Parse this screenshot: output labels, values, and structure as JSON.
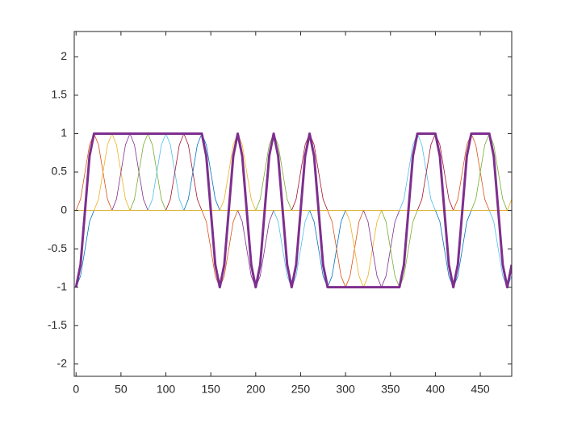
{
  "chart_data": {
    "type": "line",
    "xlim": [
      -2,
      485
    ],
    "ylim": [
      -2.16,
      2.33
    ],
    "xticks": [
      0,
      50,
      100,
      150,
      200,
      250,
      300,
      350,
      400,
      450
    ],
    "yticks": [
      -2,
      -1.5,
      -1,
      -0.5,
      0,
      0.5,
      1,
      1.5,
      2
    ],
    "grid": false,
    "series": [
      {
        "color": "#0072BD",
        "line_width": 0.8,
        "x": [
          0,
          5,
          10,
          15,
          20,
          485
        ],
        "values": [
          -1,
          -0.854,
          -0.5,
          -0.146,
          0,
          0
        ]
      },
      {
        "color": "#D95319",
        "line_width": 0.8,
        "x": [
          0,
          5,
          10,
          15,
          20,
          25,
          30,
          35,
          40,
          485
        ],
        "values": [
          0,
          0.146,
          0.5,
          0.854,
          1,
          0.854,
          0.5,
          0.146,
          0,
          0
        ]
      },
      {
        "color": "#EDB120",
        "line_width": 0.8,
        "x": [
          0,
          20,
          25,
          30,
          35,
          40,
          45,
          50,
          55,
          60,
          485
        ],
        "values": [
          0,
          0,
          0.146,
          0.5,
          0.854,
          1,
          0.854,
          0.5,
          0.146,
          0,
          0
        ]
      },
      {
        "color": "#7E2F8E",
        "line_width": 0.8,
        "x": [
          0,
          40,
          45,
          50,
          55,
          60,
          65,
          70,
          75,
          80,
          485
        ],
        "values": [
          0,
          0,
          0.146,
          0.5,
          0.854,
          1,
          0.854,
          0.5,
          0.146,
          0,
          0
        ]
      },
      {
        "color": "#77AC30",
        "line_width": 0.8,
        "x": [
          0,
          60,
          65,
          70,
          75,
          80,
          85,
          90,
          95,
          100,
          485
        ],
        "values": [
          0,
          0,
          0.146,
          0.5,
          0.854,
          1,
          0.854,
          0.5,
          0.146,
          0,
          0
        ]
      },
      {
        "color": "#4DBEEE",
        "line_width": 0.8,
        "x": [
          0,
          80,
          85,
          90,
          95,
          100,
          105,
          110,
          115,
          120,
          485
        ],
        "values": [
          0,
          0,
          0.146,
          0.5,
          0.854,
          1,
          0.854,
          0.5,
          0.146,
          0,
          0
        ]
      },
      {
        "color": "#A2142F",
        "line_width": 0.8,
        "x": [
          0,
          100,
          105,
          110,
          115,
          120,
          125,
          130,
          135,
          140,
          485
        ],
        "values": [
          0,
          0,
          0.146,
          0.5,
          0.854,
          1,
          0.854,
          0.5,
          0.146,
          0,
          0
        ]
      },
      {
        "color": "#0072BD",
        "line_width": 0.8,
        "x": [
          0,
          120,
          125,
          130,
          135,
          140,
          145,
          150,
          155,
          160,
          485
        ],
        "values": [
          0,
          0,
          0.146,
          0.5,
          0.854,
          1,
          0.854,
          0.5,
          0.146,
          0,
          0
        ]
      },
      {
        "color": "#D95319",
        "line_width": 0.8,
        "x": [
          0,
          140,
          145,
          150,
          155,
          160,
          165,
          170,
          175,
          180,
          485
        ],
        "values": [
          0,
          0,
          -0.146,
          -0.5,
          -0.854,
          -1,
          -0.854,
          -0.5,
          -0.146,
          0,
          0
        ]
      },
      {
        "color": "#EDB120",
        "line_width": 0.8,
        "x": [
          0,
          160,
          165,
          170,
          175,
          180,
          185,
          190,
          195,
          200,
          485
        ],
        "values": [
          0,
          0,
          0.146,
          0.5,
          0.854,
          1,
          0.854,
          0.5,
          0.146,
          0,
          0
        ]
      },
      {
        "color": "#7E2F8E",
        "line_width": 0.8,
        "x": [
          0,
          180,
          185,
          190,
          195,
          200,
          205,
          210,
          215,
          220,
          485
        ],
        "values": [
          0,
          0,
          -0.146,
          -0.5,
          -0.854,
          -1,
          -0.854,
          -0.5,
          -0.146,
          0,
          0
        ]
      },
      {
        "color": "#77AC30",
        "line_width": 0.8,
        "x": [
          0,
          200,
          205,
          210,
          215,
          220,
          225,
          230,
          235,
          240,
          485
        ],
        "values": [
          0,
          0,
          0.146,
          0.5,
          0.854,
          1,
          0.854,
          0.5,
          0.146,
          0,
          0
        ]
      },
      {
        "color": "#4DBEEE",
        "line_width": 0.8,
        "x": [
          0,
          220,
          225,
          230,
          235,
          240,
          245,
          250,
          255,
          260,
          485
        ],
        "values": [
          0,
          0,
          -0.146,
          -0.5,
          -0.854,
          -1,
          -0.854,
          -0.5,
          -0.146,
          0,
          0
        ]
      },
      {
        "color": "#A2142F",
        "line_width": 0.8,
        "x": [
          0,
          240,
          245,
          250,
          255,
          260,
          265,
          270,
          275,
          280,
          485
        ],
        "values": [
          0,
          0,
          0.146,
          0.5,
          0.854,
          1,
          0.854,
          0.5,
          0.146,
          0,
          0
        ]
      },
      {
        "color": "#0072BD",
        "line_width": 0.8,
        "x": [
          0,
          260,
          265,
          270,
          275,
          280,
          285,
          290,
          295,
          300,
          485
        ],
        "values": [
          0,
          0,
          -0.146,
          -0.5,
          -0.854,
          -1,
          -0.854,
          -0.5,
          -0.146,
          0,
          0
        ]
      },
      {
        "color": "#D95319",
        "line_width": 0.8,
        "x": [
          0,
          280,
          285,
          290,
          295,
          300,
          305,
          310,
          315,
          320,
          485
        ],
        "values": [
          0,
          0,
          -0.146,
          -0.5,
          -0.854,
          -1,
          -0.854,
          -0.5,
          -0.146,
          0,
          0
        ]
      },
      {
        "color": "#EDB120",
        "line_width": 0.8,
        "x": [
          0,
          300,
          305,
          310,
          315,
          320,
          325,
          330,
          335,
          340,
          485
        ],
        "values": [
          0,
          0,
          -0.146,
          -0.5,
          -0.854,
          -1,
          -0.854,
          -0.5,
          -0.146,
          0,
          0
        ]
      },
      {
        "color": "#7E2F8E",
        "line_width": 0.8,
        "x": [
          0,
          320,
          325,
          330,
          335,
          340,
          345,
          350,
          355,
          360,
          485
        ],
        "values": [
          0,
          0,
          -0.146,
          -0.5,
          -0.854,
          -1,
          -0.854,
          -0.5,
          -0.146,
          0,
          0
        ]
      },
      {
        "color": "#77AC30",
        "line_width": 0.8,
        "x": [
          0,
          340,
          345,
          350,
          355,
          360,
          365,
          370,
          375,
          380,
          485
        ],
        "values": [
          0,
          0,
          -0.146,
          -0.5,
          -0.854,
          -1,
          -0.854,
          -0.5,
          -0.146,
          0,
          0
        ]
      },
      {
        "color": "#4DBEEE",
        "line_width": 0.8,
        "x": [
          0,
          360,
          365,
          370,
          375,
          380,
          385,
          390,
          395,
          400,
          485
        ],
        "values": [
          0,
          0,
          0.146,
          0.5,
          0.854,
          1,
          0.854,
          0.5,
          0.146,
          0,
          0
        ]
      },
      {
        "color": "#A2142F",
        "line_width": 0.8,
        "x": [
          0,
          380,
          385,
          390,
          395,
          400,
          405,
          410,
          415,
          420,
          485
        ],
        "values": [
          0,
          0,
          0.146,
          0.5,
          0.854,
          1,
          0.854,
          0.5,
          0.146,
          0,
          0
        ]
      },
      {
        "color": "#0072BD",
        "line_width": 0.8,
        "x": [
          0,
          400,
          405,
          410,
          415,
          420,
          425,
          430,
          435,
          440,
          485
        ],
        "values": [
          0,
          0,
          -0.146,
          -0.5,
          -0.854,
          -1,
          -0.854,
          -0.5,
          -0.146,
          0,
          0
        ]
      },
      {
        "color": "#D95319",
        "line_width": 0.8,
        "x": [
          0,
          420,
          425,
          430,
          435,
          440,
          445,
          450,
          455,
          460,
          485
        ],
        "values": [
          0,
          0,
          0.146,
          0.5,
          0.854,
          1,
          0.854,
          0.5,
          0.146,
          0,
          0
        ]
      },
      {
        "color": "#77AC30",
        "line_width": 0.8,
        "x": [
          0,
          440,
          445,
          450,
          455,
          460,
          465,
          470,
          475,
          480,
          485
        ],
        "values": [
          0,
          0,
          0.146,
          0.5,
          0.854,
          1,
          0.854,
          0.5,
          0.146,
          0,
          0
        ]
      },
      {
        "color": "#4DBEEE",
        "line_width": 0.8,
        "x": [
          0,
          460,
          465,
          470,
          475,
          480,
          485
        ],
        "values": [
          0,
          0,
          -0.146,
          -0.5,
          -0.854,
          -1,
          -0.854
        ]
      },
      {
        "color": "#EDB120",
        "line_width": 0.8,
        "x": [
          0,
          480,
          485
        ],
        "values": [
          0,
          0,
          0.146
        ]
      },
      {
        "color": "#7E2F8E",
        "line_width": 3,
        "x": [
          0,
          5,
          10,
          15,
          20,
          140,
          145,
          150,
          155,
          160,
          165,
          170,
          175,
          180,
          185,
          190,
          195,
          200,
          205,
          210,
          215,
          220,
          225,
          230,
          235,
          240,
          245,
          250,
          255,
          260,
          265,
          270,
          275,
          280,
          360,
          365,
          370,
          375,
          380,
          400,
          405,
          410,
          415,
          420,
          425,
          430,
          435,
          440,
          460,
          465,
          470,
          475,
          480,
          485
        ],
        "values": [
          -1,
          -0.707,
          0,
          0.707,
          1,
          1,
          0.707,
          0,
          -0.707,
          -1,
          -0.707,
          0,
          0.707,
          1,
          0.707,
          0,
          -0.707,
          -1,
          -0.707,
          0,
          0.707,
          1,
          0.707,
          0,
          -0.707,
          -1,
          -0.707,
          0,
          0.707,
          1,
          0.707,
          0,
          -0.707,
          -1,
          -1,
          -0.707,
          0,
          0.707,
          1,
          1,
          0.707,
          0,
          -0.707,
          -1,
          -0.707,
          0,
          0.707,
          1,
          1,
          0.707,
          0,
          -0.707,
          -1,
          -0.707
        ]
      }
    ]
  }
}
